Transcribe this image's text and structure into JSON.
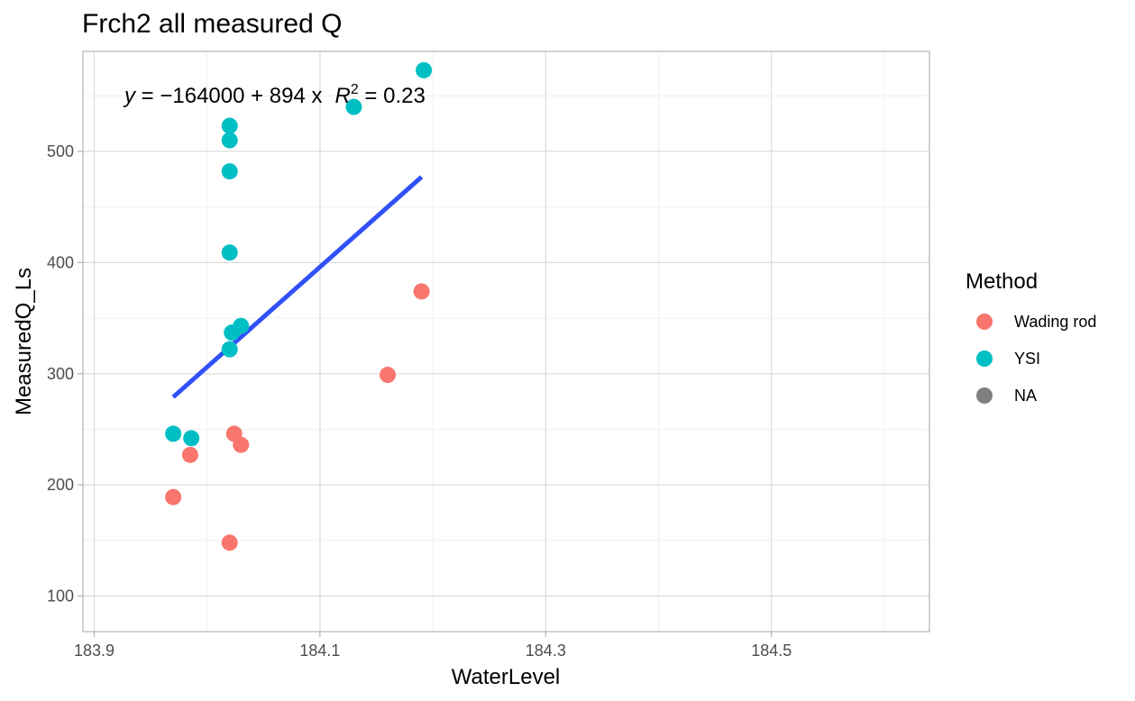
{
  "chart_data": {
    "type": "scatter",
    "title": "Frch2 all measured Q",
    "xlabel": "WaterLevel",
    "ylabel": "MeasuredQ_Ls",
    "xlim": [
      183.89,
      184.64
    ],
    "ylim": [
      68,
      590
    ],
    "x_ticks": [
      183.9,
      184.1,
      184.3,
      184.5
    ],
    "x_tick_labels": [
      "183.9",
      "184.1",
      "184.3",
      "184.5"
    ],
    "x_minor_ticks": [
      184.0,
      184.2,
      184.4,
      184.6
    ],
    "y_ticks": [
      100,
      200,
      300,
      400,
      500
    ],
    "y_tick_labels": [
      "100",
      "200",
      "300",
      "400",
      "500"
    ],
    "y_minor_ticks": [
      150,
      250,
      350,
      450,
      550
    ],
    "grid": true,
    "legend": {
      "title": "Method",
      "position": "right",
      "entries": [
        {
          "label": "Wading rod",
          "color": "#f8766d"
        },
        {
          "label": "YSI",
          "color": "#00bfc4"
        },
        {
          "label": "NA",
          "color": "#7f7f7f"
        }
      ]
    },
    "series": [
      {
        "name": "Wading rod",
        "color": "#f8766d",
        "points": [
          {
            "x": 183.97,
            "y": 189
          },
          {
            "x": 183.985,
            "y": 227
          },
          {
            "x": 184.02,
            "y": 148
          },
          {
            "x": 184.024,
            "y": 246
          },
          {
            "x": 184.03,
            "y": 236
          },
          {
            "x": 184.16,
            "y": 299
          },
          {
            "x": 184.19,
            "y": 374
          }
        ]
      },
      {
        "name": "YSI",
        "color": "#00bfc4",
        "points": [
          {
            "x": 183.97,
            "y": 246
          },
          {
            "x": 183.986,
            "y": 242
          },
          {
            "x": 184.02,
            "y": 322
          },
          {
            "x": 184.022,
            "y": 337
          },
          {
            "x": 184.03,
            "y": 343
          },
          {
            "x": 184.02,
            "y": 409
          },
          {
            "x": 184.02,
            "y": 482
          },
          {
            "x": 184.02,
            "y": 510
          },
          {
            "x": 184.02,
            "y": 523
          },
          {
            "x": 184.13,
            "y": 540
          },
          {
            "x": 184.192,
            "y": 573
          }
        ]
      }
    ],
    "regression_line": {
      "color": "#3050f8",
      "points": [
        {
          "x": 183.97,
          "y": 279
        },
        {
          "x": 184.19,
          "y": 477
        }
      ]
    },
    "annotation": {
      "equation_lhs": "y",
      "equation_rhs": " = −164000 + 894 x",
      "r2_label": "R",
      "r2_sup": "2",
      "r2_value": " = 0.23"
    }
  }
}
